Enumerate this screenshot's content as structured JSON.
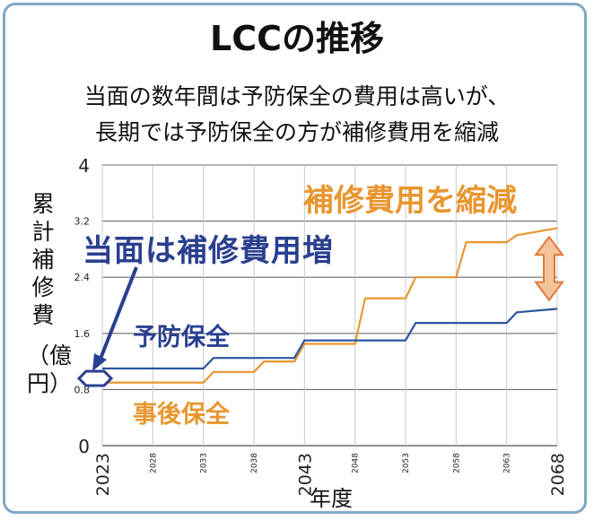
{
  "title": "LCCの推移",
  "subtitle_line1": "当面の数年間は予防保全の費用は高いが、",
  "subtitle_line2": "長期では予防保全の方が補修費用を縮減",
  "ylabel_main": "累計補修費",
  "ylabel_unit": "（億円）",
  "xlabel": "年度",
  "annotation_near": "当面は補修費用増",
  "annotation_long": "補修費用を縮減",
  "colors": {
    "preventive": "#2b55a0",
    "reactive": "#e8962f",
    "annotation_blue": "#2a3f8f",
    "annotation_orange": "#e8962f",
    "frame": "#7fa8c4"
  },
  "chart_data": {
    "type": "line",
    "x_range": [
      2023,
      2068
    ],
    "ylim": [
      0,
      4
    ],
    "y_ticks": [
      "0",
      "0.8",
      "1.6",
      "2.4",
      "3.2",
      "4"
    ],
    "x_ticks": [
      "2023",
      "2028",
      "2033",
      "2038",
      "2043",
      "2048",
      "2053",
      "2058",
      "2063",
      "2068"
    ],
    "grid": true,
    "series": [
      {
        "name": "予防保全",
        "x": [
          2023,
          2033,
          2034,
          2042,
          2043,
          2053,
          2054,
          2063,
          2064,
          2068
        ],
        "values": [
          1.1,
          1.1,
          1.25,
          1.25,
          1.5,
          1.5,
          1.75,
          1.75,
          1.9,
          1.95
        ]
      },
      {
        "name": "事後保全",
        "x": [
          2023,
          2033,
          2034,
          2038,
          2039,
          2042,
          2043,
          2048,
          2049,
          2053,
          2054,
          2058,
          2059,
          2063,
          2064,
          2068
        ],
        "values": [
          0.9,
          0.9,
          1.05,
          1.05,
          1.2,
          1.2,
          1.45,
          1.45,
          2.1,
          2.1,
          2.4,
          2.4,
          2.9,
          2.9,
          3.0,
          3.1
        ]
      }
    ]
  }
}
